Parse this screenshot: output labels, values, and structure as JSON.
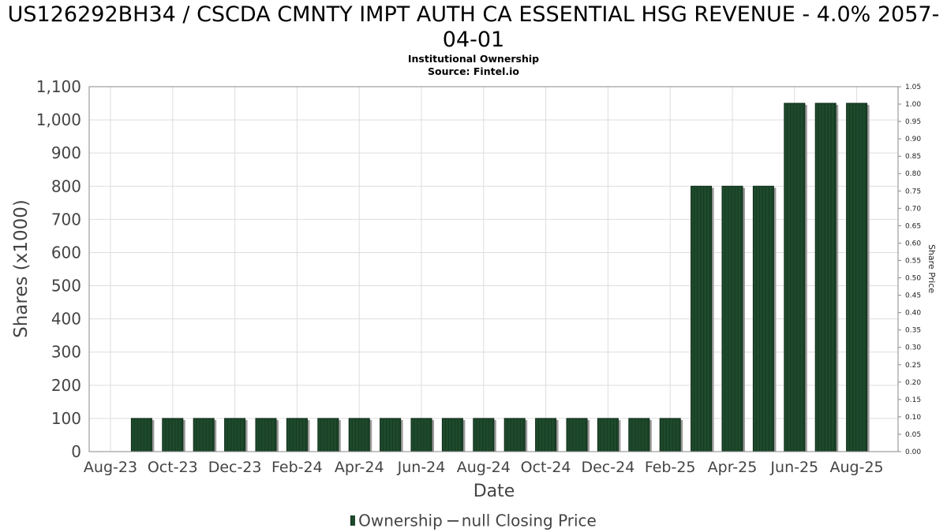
{
  "chart_data": {
    "type": "bar",
    "title": "US126292BH34 / CSCDA CMNTY IMPT AUTH CA ESSENTIAL HSG REVENUE - 4.0% 2057-04-01",
    "subtitle": "Institutional Ownership",
    "source": "Source: Fintel.io",
    "xlabel": "Date",
    "ylabel": "Shares (x1000)",
    "y2label": "Share Price",
    "ylim": [
      0,
      1100
    ],
    "y2lim": [
      0,
      1.05
    ],
    "yticks": [
      "0",
      "100",
      "200",
      "300",
      "400",
      "500",
      "600",
      "700",
      "800",
      "900",
      "1,000",
      "1,100"
    ],
    "y2ticks": [
      "0.00",
      "0.05",
      "0.10",
      "0.15",
      "0.20",
      "0.25",
      "0.30",
      "0.35",
      "0.40",
      "0.45",
      "0.50",
      "0.55",
      "0.60",
      "0.65",
      "0.70",
      "0.75",
      "0.80",
      "0.85",
      "0.90",
      "0.95",
      "1.00",
      "1.05"
    ],
    "xticks": [
      "Aug-23",
      "Oct-23",
      "Dec-23",
      "Feb-24",
      "Apr-24",
      "Jun-24",
      "Aug-24",
      "Oct-24",
      "Dec-24",
      "Feb-25",
      "Apr-25",
      "Jun-25",
      "Aug-25"
    ],
    "grid": true,
    "legend_position": "bottom",
    "series": [
      {
        "name": "Ownership",
        "color": "#1e4a2c",
        "values": [
          100,
          100,
          100,
          100,
          100,
          100,
          100,
          100,
          100,
          100,
          100,
          100,
          100,
          100,
          100,
          100,
          100,
          100,
          800,
          800,
          800,
          1050,
          1050,
          1050
        ]
      },
      {
        "name": "null Closing Price",
        "color": "#555555",
        "values": []
      }
    ]
  }
}
